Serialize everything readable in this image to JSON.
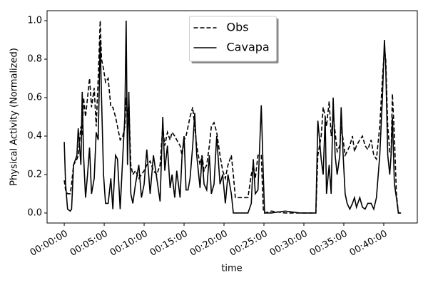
{
  "chart_data": {
    "type": "line",
    "xlabel": "time",
    "ylabel": "Physical Activity (Normalized)",
    "x": [
      0,
      10,
      25,
      45,
      55,
      70,
      95,
      105,
      125,
      135,
      145,
      160,
      175,
      190,
      205,
      225,
      240,
      255,
      270,
      280,
      295,
      310,
      330,
      350,
      365,
      385,
      400,
      420,
      440,
      455,
      465,
      475,
      485,
      500,
      515,
      535,
      560,
      580,
      600,
      620,
      645,
      670,
      695,
      720,
      740,
      755,
      775,
      795,
      810,
      830,
      845,
      870,
      885,
      900,
      915,
      930,
      945,
      965,
      980,
      995,
      1020,
      1035,
      1050,
      1070,
      1090,
      1105,
      1125,
      1145,
      1170,
      1190,
      1210,
      1230,
      1255,
      1270,
      1285,
      1340,
      1380,
      1405,
      1420,
      1435,
      1455,
      1480,
      1495,
      1505,
      1555,
      1660,
      1770,
      1875,
      1890,
      1905,
      1930,
      1945,
      1960,
      1970,
      1990,
      2005,
      2020,
      2035,
      2050,
      2070,
      2080,
      2095,
      2110,
      2125,
      2145,
      2165,
      2180,
      2195,
      2220,
      2240,
      2260,
      2280,
      2305,
      2325,
      2345,
      2370,
      2390,
      2405,
      2415,
      2430,
      2445,
      2455,
      2465,
      2480,
      2495,
      2510,
      2530
    ],
    "series": [
      {
        "name": "Obs",
        "color": "#000000",
        "linestyle": "dashed",
        "values": [
          0.17,
          0.12,
          0.1,
          0.1,
          0.15,
          0.25,
          0.28,
          0.3,
          0.45,
          0.4,
          0.6,
          0.5,
          0.6,
          0.7,
          0.55,
          0.65,
          0.45,
          0.7,
          1.0,
          0.8,
          0.75,
          0.68,
          0.7,
          0.55,
          0.55,
          0.5,
          0.45,
          0.38,
          0.4,
          0.45,
          0.6,
          0.5,
          0.58,
          0.25,
          0.2,
          0.22,
          0.18,
          0.2,
          0.22,
          0.25,
          0.27,
          0.22,
          0.2,
          0.25,
          0.45,
          0.35,
          0.42,
          0.38,
          0.42,
          0.4,
          0.38,
          0.35,
          0.3,
          0.38,
          0.4,
          0.45,
          0.5,
          0.55,
          0.45,
          0.35,
          0.25,
          0.3,
          0.22,
          0.25,
          0.35,
          0.45,
          0.47,
          0.42,
          0.3,
          0.22,
          0.18,
          0.25,
          0.3,
          0.2,
          0.08,
          0.08,
          0.08,
          0.2,
          0.25,
          0.18,
          0.3,
          0.3,
          0.02,
          0,
          0.01,
          0,
          0,
          0,
          0,
          0.3,
          0.4,
          0.55,
          0.5,
          0.45,
          0.58,
          0.4,
          0.5,
          0.42,
          0.32,
          0.35,
          0.45,
          0.38,
          0.3,
          0.32,
          0.35,
          0.4,
          0.32,
          0.35,
          0.38,
          0.4,
          0.35,
          0.33,
          0.38,
          0.3,
          0.28,
          0.45,
          0.7,
          0.85,
          0.8,
          0.45,
          0.32,
          0.3,
          0.62,
          0.4,
          0.1,
          0,
          0
        ]
      },
      {
        "name": "Cavapa",
        "color": "#000000",
        "linestyle": "solid",
        "values": [
          0.37,
          0.15,
          0.02,
          0.01,
          0.02,
          0.25,
          0.3,
          0.44,
          0.25,
          0.63,
          0.3,
          0.08,
          0.2,
          0.34,
          0.1,
          0.18,
          0.42,
          0.38,
          0.9,
          0.6,
          0.2,
          0.05,
          0.05,
          0.18,
          0.02,
          0.3,
          0.28,
          0.02,
          0.3,
          0.5,
          1.0,
          0.25,
          0.63,
          0.1,
          0.05,
          0.15,
          0.25,
          0.08,
          0.15,
          0.33,
          0.1,
          0.3,
          0.18,
          0.06,
          0.5,
          0.22,
          0.35,
          0.13,
          0.2,
          0.08,
          0.22,
          0.08,
          0.3,
          0.4,
          0.12,
          0.12,
          0.18,
          0.35,
          0.52,
          0.3,
          0.13,
          0.3,
          0.15,
          0.12,
          0.3,
          0.1,
          0.15,
          0.4,
          0.15,
          0.2,
          0.05,
          0.2,
          0.1,
          0,
          0,
          0,
          0,
          0.05,
          0.28,
          0.1,
          0.12,
          0.56,
          0.2,
          0,
          0,
          0.01,
          0,
          0,
          0,
          0.48,
          0.28,
          0.2,
          0.5,
          0.1,
          0.25,
          0.1,
          0.6,
          0.3,
          0.2,
          0.3,
          0.55,
          0.3,
          0.1,
          0.05,
          0.02,
          0.05,
          0.08,
          0.03,
          0.08,
          0.03,
          0.02,
          0.05,
          0.05,
          0.02,
          0.08,
          0.3,
          0.6,
          0.9,
          0.76,
          0.3,
          0.2,
          0.3,
          0.5,
          0.15,
          0.08,
          0,
          0
        ]
      }
    ],
    "xlim": [
      -129,
      2652
    ],
    "xticks": [
      {
        "value": 0,
        "label": "00:00:00"
      },
      {
        "value": 300,
        "label": "00:05:00"
      },
      {
        "value": 600,
        "label": "00:10:00"
      },
      {
        "value": 900,
        "label": "00:15:00"
      },
      {
        "value": 1200,
        "label": "00:20:00"
      },
      {
        "value": 1500,
        "label": "00:25:00"
      },
      {
        "value": 1800,
        "label": "00:30:00"
      },
      {
        "value": 2100,
        "label": "00:35:00"
      },
      {
        "value": 2400,
        "label": "00:40:00"
      }
    ],
    "ylim": [
      -0.052,
      1.052
    ],
    "yticks": [
      {
        "value": 0,
        "label": "0.0"
      },
      0.2,
      0.4,
      0.6,
      0.8,
      {
        "value": 1,
        "label": "1.0"
      }
    ],
    "legend": "upper center"
  }
}
